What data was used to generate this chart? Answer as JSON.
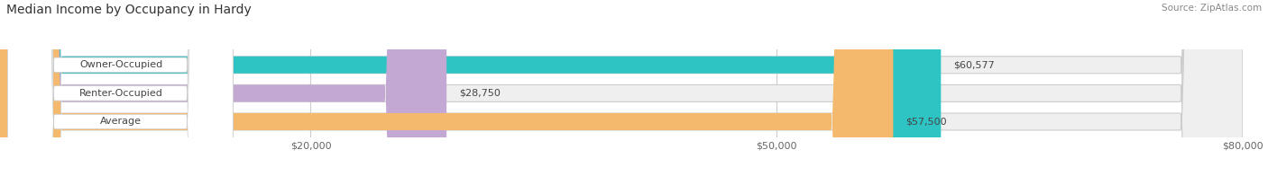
{
  "title": "Median Income by Occupancy in Hardy",
  "source": "Source: ZipAtlas.com",
  "categories": [
    "Owner-Occupied",
    "Renter-Occupied",
    "Average"
  ],
  "values": [
    60577,
    28750,
    57500
  ],
  "labels": [
    "$60,577",
    "$28,750",
    "$57,500"
  ],
  "bar_colors": [
    "#2ec4c4",
    "#c4a8d4",
    "#f5b96e"
  ],
  "bar_bg_color": "#efefef",
  "xlim": [
    0,
    80000
  ],
  "xticks": [
    20000,
    50000,
    80000
  ],
  "xtick_labels": [
    "$20,000",
    "$50,000",
    "$80,000"
  ],
  "title_fontsize": 10,
  "source_fontsize": 7.5,
  "label_fontsize": 8,
  "category_fontsize": 8,
  "bar_height": 0.6,
  "figsize": [
    14.06,
    1.96
  ],
  "dpi": 100
}
